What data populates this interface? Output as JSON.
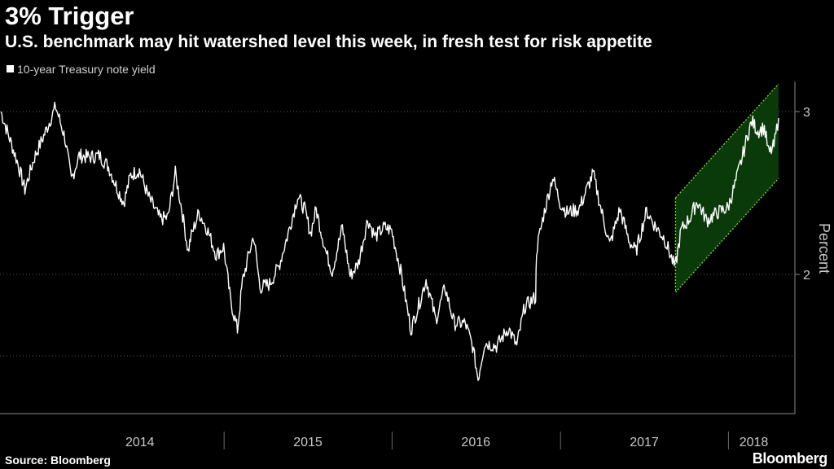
{
  "header": {
    "title": "3% Trigger",
    "subtitle": "U.S. benchmark may hit watershed level this week, in fresh test for risk appetite"
  },
  "legend": {
    "label": "10-year Treasury note yield"
  },
  "footer": {
    "source": "Source: Bloomberg",
    "brand": "Bloomberg"
  },
  "colors": {
    "background": "#000000",
    "line": "#ffffff",
    "channel_fill": "#0b3d0b",
    "channel_border": "#7ddc2e",
    "grid": "#5a5a5a"
  },
  "chart_data": {
    "type": "line",
    "title": "3% Trigger",
    "subtitle": "U.S. benchmark may hit watershed level this week, in fresh test for risk appetite",
    "xlabel": "",
    "ylabel": "Percent",
    "ylim": [
      1.3,
      3.2
    ],
    "xlim": [
      "2013-09-01",
      "2018-04-20"
    ],
    "y_ticks": [
      2,
      3
    ],
    "y_tick_labels": [
      "2",
      "3"
    ],
    "x_ticks": [
      "2014",
      "2015",
      "2016",
      "2017",
      "2018"
    ],
    "grid": "horizontal dotted",
    "legend_position": "top-left",
    "series": [
      {
        "name": "10-year Treasury note yield",
        "points": [
          [
            "2013-09-03",
            3.0
          ],
          [
            "2013-09-20",
            2.85
          ],
          [
            "2013-10-10",
            2.68
          ],
          [
            "2013-10-25",
            2.52
          ],
          [
            "2013-11-15",
            2.72
          ],
          [
            "2013-12-05",
            2.85
          ],
          [
            "2013-12-31",
            3.03
          ],
          [
            "2014-01-20",
            2.84
          ],
          [
            "2014-02-03",
            2.58
          ],
          [
            "2014-02-20",
            2.73
          ],
          [
            "2014-03-15",
            2.72
          ],
          [
            "2014-04-05",
            2.73
          ],
          [
            "2014-04-25",
            2.66
          ],
          [
            "2014-05-15",
            2.52
          ],
          [
            "2014-05-28",
            2.44
          ],
          [
            "2014-06-12",
            2.61
          ],
          [
            "2014-07-01",
            2.64
          ],
          [
            "2014-07-20",
            2.48
          ],
          [
            "2014-08-15",
            2.34
          ],
          [
            "2014-09-01",
            2.35
          ],
          [
            "2014-09-17",
            2.62
          ],
          [
            "2014-10-01",
            2.4
          ],
          [
            "2014-10-15",
            2.14
          ],
          [
            "2014-10-20",
            2.22
          ],
          [
            "2014-11-07",
            2.38
          ],
          [
            "2014-11-25",
            2.28
          ],
          [
            "2014-12-15",
            2.12
          ],
          [
            "2014-12-31",
            2.17
          ],
          [
            "2015-01-15",
            1.84
          ],
          [
            "2015-01-30",
            1.66
          ],
          [
            "2015-02-10",
            1.96
          ],
          [
            "2015-03-06",
            2.24
          ],
          [
            "2015-03-20",
            1.92
          ],
          [
            "2015-04-10",
            1.94
          ],
          [
            "2015-04-30",
            2.05
          ],
          [
            "2015-05-20",
            2.25
          ],
          [
            "2015-06-10",
            2.48
          ],
          [
            "2015-06-25",
            2.4
          ],
          [
            "2015-07-08",
            2.25
          ],
          [
            "2015-07-20",
            2.4
          ],
          [
            "2015-08-10",
            2.14
          ],
          [
            "2015-08-24",
            2.02
          ],
          [
            "2015-09-15",
            2.29
          ],
          [
            "2015-10-02",
            1.99
          ],
          [
            "2015-10-20",
            2.07
          ],
          [
            "2015-11-09",
            2.34
          ],
          [
            "2015-11-25",
            2.23
          ],
          [
            "2015-12-15",
            2.29
          ],
          [
            "2015-12-31",
            2.27
          ],
          [
            "2016-01-20",
            2.02
          ],
          [
            "2016-02-11",
            1.66
          ],
          [
            "2016-03-01",
            1.83
          ],
          [
            "2016-03-15",
            1.97
          ],
          [
            "2016-04-05",
            1.72
          ],
          [
            "2016-04-25",
            1.92
          ],
          [
            "2016-05-15",
            1.7
          ],
          [
            "2016-06-08",
            1.7
          ],
          [
            "2016-06-24",
            1.56
          ],
          [
            "2016-07-06",
            1.36
          ],
          [
            "2016-07-20",
            1.58
          ],
          [
            "2016-08-15",
            1.56
          ],
          [
            "2016-09-10",
            1.67
          ],
          [
            "2016-09-28",
            1.56
          ],
          [
            "2016-10-15",
            1.8
          ],
          [
            "2016-11-08",
            1.86
          ],
          [
            "2016-11-10",
            2.15
          ],
          [
            "2016-11-25",
            2.36
          ],
          [
            "2016-12-15",
            2.6
          ],
          [
            "2016-12-31",
            2.44
          ],
          [
            "2017-01-15",
            2.38
          ],
          [
            "2017-02-10",
            2.4
          ],
          [
            "2017-03-13",
            2.62
          ],
          [
            "2017-03-31",
            2.39
          ],
          [
            "2017-04-18",
            2.18
          ],
          [
            "2017-05-10",
            2.4
          ],
          [
            "2017-05-31",
            2.2
          ],
          [
            "2017-06-14",
            2.14
          ],
          [
            "2017-07-07",
            2.39
          ],
          [
            "2017-07-25",
            2.3
          ],
          [
            "2017-08-15",
            2.22
          ],
          [
            "2017-09-07",
            2.04
          ],
          [
            "2017-09-20",
            2.27
          ],
          [
            "2017-10-10",
            2.35
          ],
          [
            "2017-10-25",
            2.45
          ],
          [
            "2017-11-15",
            2.33
          ],
          [
            "2017-12-08",
            2.38
          ],
          [
            "2017-12-31",
            2.41
          ],
          [
            "2018-01-15",
            2.55
          ],
          [
            "2018-01-31",
            2.72
          ],
          [
            "2018-02-12",
            2.86
          ],
          [
            "2018-02-21",
            2.94
          ],
          [
            "2018-03-06",
            2.88
          ],
          [
            "2018-03-20",
            2.9
          ],
          [
            "2018-03-30",
            2.74
          ],
          [
            "2018-04-10",
            2.79
          ],
          [
            "2018-04-20",
            2.96
          ]
        ]
      }
    ],
    "channel": {
      "start": "2017-09-08",
      "end": "2018-04-20",
      "upper": [
        2.47,
        3.17
      ],
      "lower": [
        1.89,
        2.59
      ]
    }
  }
}
